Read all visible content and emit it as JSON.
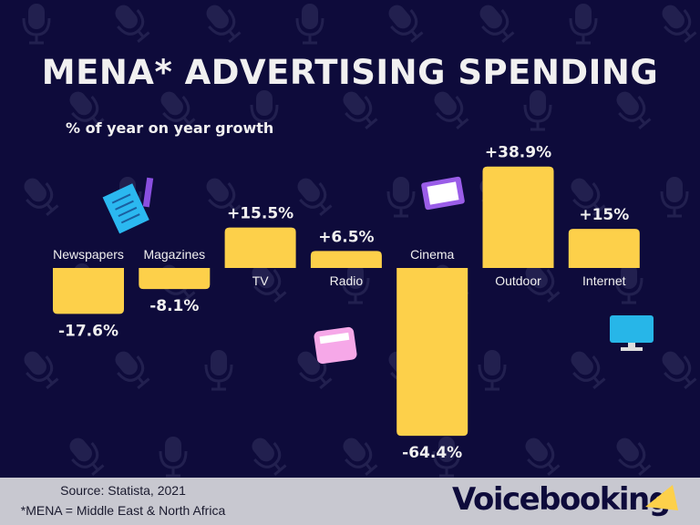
{
  "title": "MENA* ADVERTISING SPENDING",
  "subtitle": "% of year on year growth",
  "footer": {
    "source": "Source: Statista, 2021",
    "note": "*MENA = Middle East & North Africa",
    "brand": "Voicebooking"
  },
  "colors": {
    "background": "#0e0b3b",
    "bar": "#fdd04a",
    "text": "#f1f0f0",
    "footer": "#c8c8d0"
  },
  "chart_data": {
    "type": "bar",
    "title": "MENA* ADVERTISING SPENDING",
    "ylabel": "% of year on year growth",
    "categories": [
      "Newspapers",
      "Magazines",
      "TV",
      "Radio",
      "Cinema",
      "Outdoor",
      "Internet"
    ],
    "values": [
      -17.6,
      -8.1,
      15.5,
      6.5,
      -64.4,
      38.9,
      15
    ],
    "labels": [
      "-17.6%",
      "-8.1%",
      "+15.5%",
      "+6.5%",
      "-64.4%",
      "+38.9%",
      "+15%"
    ],
    "grid": false
  }
}
